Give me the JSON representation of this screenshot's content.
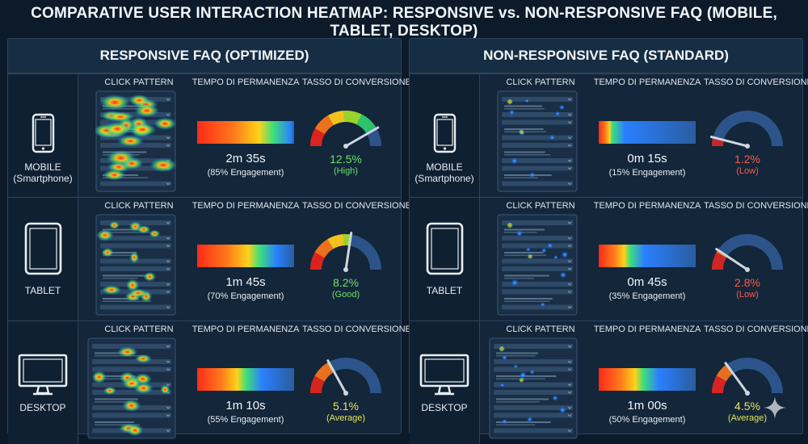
{
  "title": "COMPARATIVE USER INTERACTION HEATMAP: RESPONSIVE vs. NON-RESPONSIVE FAQ (MOBILE, TABLET, DESKTOP)",
  "colors": {
    "background": "#0c1a2a",
    "panel": "#13263a",
    "heat_hot": "#ff2a1a",
    "heat_mid": "#ffd21a",
    "heat_cool": "#2a7fff",
    "good_green": "#6be06b",
    "low_red": "#ff5a4a",
    "average_yellow": "#e9e35a"
  },
  "chart_data": [
    {
      "type": "heatmap-dashboard",
      "panel": "RESPONSIVE FAQ (OPTIMIZED)",
      "column_headers": [
        "CLICK PATTERN",
        "TEMPO DI PERMANENZA",
        "TASSO DI CONVERSIONE"
      ],
      "rows": [
        {
          "device": "MOBILE",
          "device_sub": "(Smartphone)",
          "icon": "smartphone-icon",
          "click_density": "high",
          "time": "2m 35s",
          "engagement_pct": 85,
          "engagement": "(85% Engagement)",
          "conversion_pct": 12.5,
          "conversion": "12.5%",
          "conversion_label": "(High)",
          "conversion_color": "#6be06b"
        },
        {
          "device": "TABLET",
          "device_sub": "",
          "icon": "tablet-icon",
          "click_density": "medium",
          "time": "1m 45s",
          "engagement_pct": 70,
          "engagement": "(70% Engagement)",
          "conversion_pct": 8.2,
          "conversion": "8.2%",
          "conversion_label": "(Good)",
          "conversion_color": "#6be06b"
        },
        {
          "device": "DESKTOP",
          "device_sub": "",
          "icon": "desktop-monitor-icon",
          "click_density": "medium",
          "time": "1m 10s",
          "engagement_pct": 55,
          "engagement": "(55% Engagement)",
          "conversion_pct": 5.1,
          "conversion": "5.1%",
          "conversion_label": "(Average)",
          "conversion_color": "#e9e35a"
        }
      ]
    },
    {
      "type": "heatmap-dashboard",
      "panel": "NON-RESPONSIVE FAQ (STANDARD)",
      "column_headers": [
        "CLICK PATTERN",
        "TEMPO DI PERMANENZA",
        "TASSO DI CONVERSIONE"
      ],
      "rows": [
        {
          "device": "MOBILE",
          "device_sub": "(Smartphone)",
          "icon": "smartphone-icon",
          "click_density": "sparse",
          "time": "0m 15s",
          "engagement_pct": 15,
          "engagement": "(15% Engagement)",
          "conversion_pct": 1.2,
          "conversion": "1.2%",
          "conversion_label": "(Low)",
          "conversion_color": "#ff5a4a"
        },
        {
          "device": "TABLET",
          "device_sub": "",
          "icon": "tablet-icon",
          "click_density": "sparse",
          "time": "0m 45s",
          "engagement_pct": 35,
          "engagement": "(35% Engagement)",
          "conversion_pct": 2.8,
          "conversion": "2.8%",
          "conversion_label": "(Low)",
          "conversion_color": "#ff5a4a"
        },
        {
          "device": "DESKTOP",
          "device_sub": "",
          "icon": "desktop-monitor-icon",
          "click_density": "sparse",
          "time": "1m 00s",
          "engagement_pct": 50,
          "engagement": "(50% Engagement)",
          "conversion_pct": 4.5,
          "conversion": "4.5%",
          "conversion_label": "(Average)",
          "conversion_color": "#e9e35a"
        }
      ]
    }
  ]
}
